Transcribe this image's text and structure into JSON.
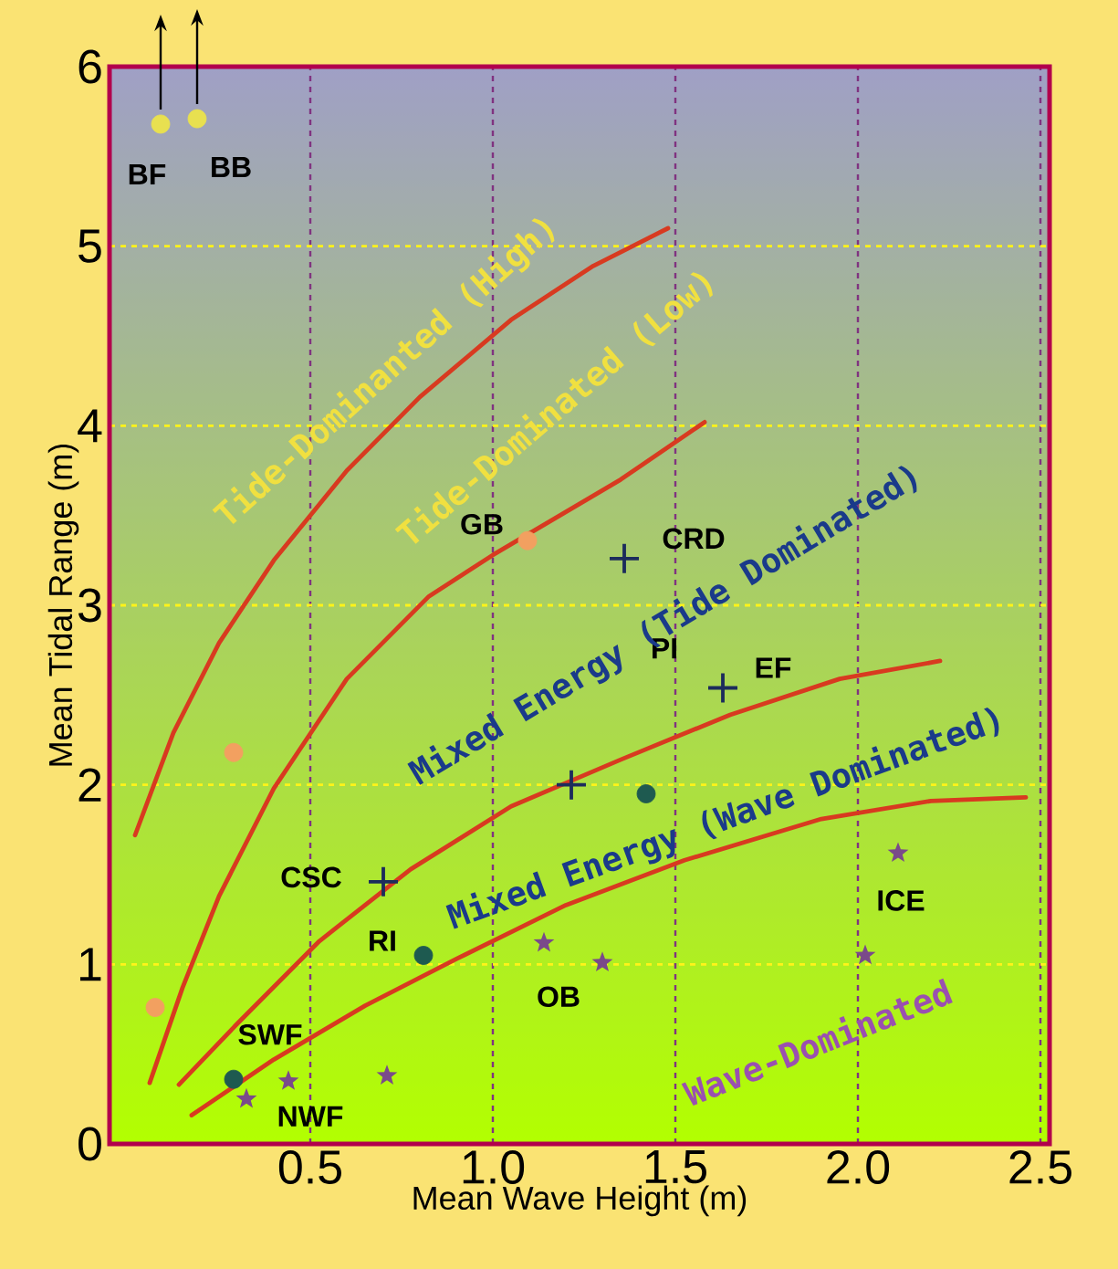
{
  "chart_data": {
    "type": "scatter",
    "xlabel": "Mean Wave Height (m)",
    "ylabel": "Mean Tidal Range (m)",
    "xlim": [
      -0.05,
      2.525
    ],
    "ylim": [
      0,
      6
    ],
    "xticks": [
      0.5,
      {
        "value": 1.0,
        "label": "1.0"
      },
      1.5,
      {
        "value": 2.0,
        "label": "2.0"
      },
      2.5
    ],
    "yticks": [
      0,
      1,
      2,
      3,
      4,
      5,
      6
    ],
    "grid": true,
    "series": [
      {
        "type": "scatter",
        "marker": "circle",
        "color": "#f2a060",
        "x": [
          1.095,
          0.29,
          0.075
        ],
        "values": [
          3.36,
          2.18,
          0.76
        ]
      },
      {
        "type": "scatter",
        "marker": "cross",
        "color": "#1c2c5c",
        "x": [
          1.36,
          1.63,
          1.215,
          0.7
        ],
        "values": [
          3.26,
          2.54,
          2.0,
          1.46
        ]
      },
      {
        "type": "scatter",
        "marker": "circle",
        "color": "#1e5a50",
        "x": [
          1.42,
          0.81,
          0.29
        ],
        "values": [
          1.95,
          1.05,
          0.36
        ]
      },
      {
        "type": "scatter",
        "marker": "circle",
        "color": "#e8e050",
        "x": [
          0.09,
          0.19
        ],
        "values": [
          5.68,
          5.71
        ]
      },
      {
        "type": "scatter",
        "marker": "star",
        "color": "#7a4a8a",
        "x": [
          0.325,
          0.44,
          0.71,
          1.14,
          1.3,
          2.02,
          2.11
        ],
        "values": [
          0.25,
          0.35,
          0.38,
          1.12,
          1.01,
          1.05,
          1.62
        ]
      },
      {
        "type": "line",
        "marker": "none",
        "color": "#d83a20",
        "x": [
          0.02,
          0.125,
          0.25,
          0.4,
          0.6,
          0.8,
          1.05,
          1.275,
          1.48
        ],
        "values": [
          1.72,
          2.29,
          2.79,
          3.25,
          3.75,
          4.16,
          4.59,
          4.89,
          5.1
        ]
      },
      {
        "type": "line",
        "marker": "none",
        "color": "#d83a20",
        "x": [
          0.06,
          0.15,
          0.25,
          0.4,
          0.6,
          0.825,
          1.0,
          1.35,
          1.58
        ],
        "values": [
          0.34,
          0.87,
          1.38,
          1.98,
          2.59,
          3.05,
          3.28,
          3.7,
          4.02
        ]
      },
      {
        "type": "line",
        "marker": "none",
        "color": "#d83a20",
        "x": [
          0.14,
          0.3,
          0.525,
          0.775,
          1.05,
          1.35,
          1.65,
          1.95,
          2.225
        ],
        "values": [
          0.33,
          0.67,
          1.13,
          1.53,
          1.88,
          2.14,
          2.39,
          2.59,
          2.69
        ]
      },
      {
        "type": "line",
        "marker": "none",
        "color": "#d83a20",
        "x": [
          0.175,
          0.4,
          0.65,
          0.9,
          1.2,
          1.525,
          1.9,
          2.2,
          2.46
        ],
        "values": [
          0.16,
          0.47,
          0.77,
          1.03,
          1.33,
          1.58,
          1.81,
          1.91,
          1.93
        ]
      }
    ],
    "annotations": [
      {
        "text": "BF",
        "x": 0.09,
        "y": 5.68
      },
      {
        "text": "BB",
        "x": 0.19,
        "y": 5.71
      },
      {
        "text": "GB",
        "x": 1.095,
        "y": 3.36
      },
      {
        "text": "CRD",
        "x": 1.36,
        "y": 3.26
      },
      {
        "text": "EF",
        "x": 1.63,
        "y": 2.54
      },
      {
        "text": "CSC",
        "x": 0.7,
        "y": 1.46
      },
      {
        "text": "RI",
        "x": 0.81,
        "y": 1.05
      },
      {
        "text": "SWF",
        "x": 0.29,
        "y": 0.36
      },
      {
        "text": "NWF",
        "x": 0.325,
        "y": 0.25
      },
      {
        "text": "ICE",
        "x": 2.11,
        "y": 1.62
      },
      "PI",
      "OB",
      "Tide-Dominanted (High)",
      "Tide-Dominated (Low)",
      "Mixed Energy (Tide Dominated)",
      "Mixed Energy (Wave Dominated)",
      "Wave-Dominated"
    ]
  }
}
